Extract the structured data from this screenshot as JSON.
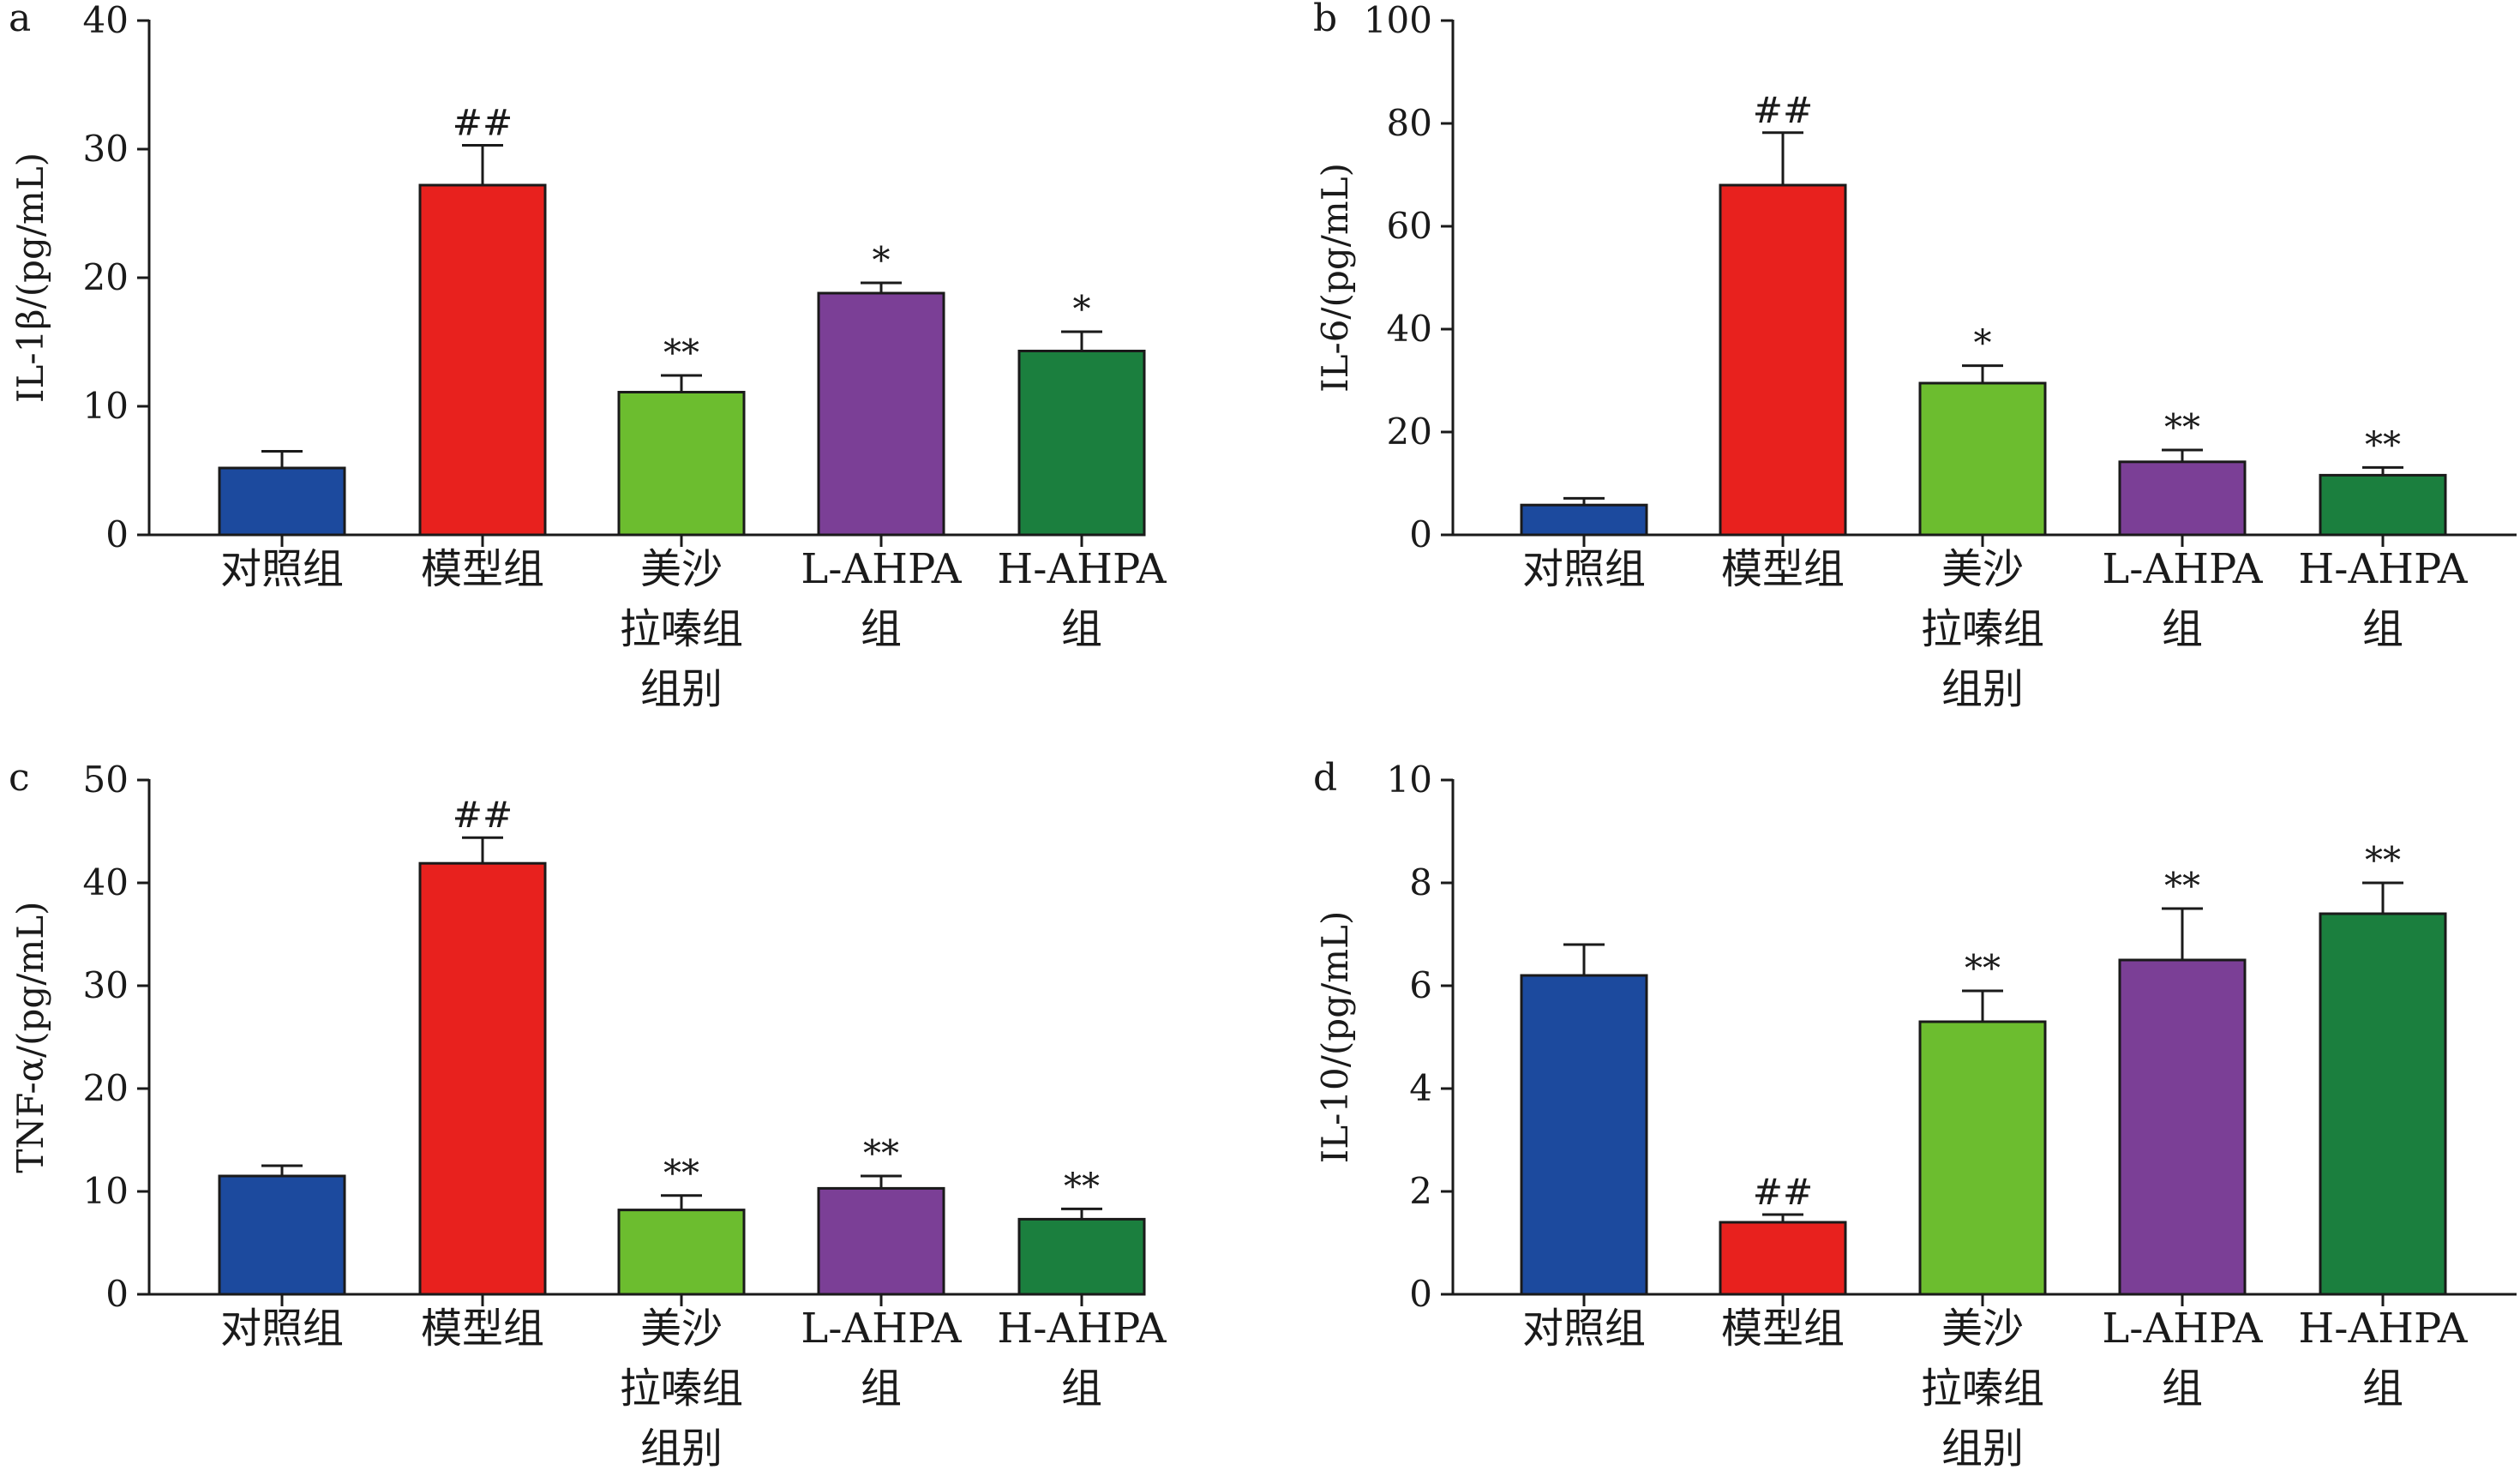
{
  "chart_data": [
    {
      "type": "bar",
      "panel": "a",
      "ylabel": "IL-1β/(pg/mL)",
      "ylim": [
        0,
        40
      ],
      "yticks": [
        0,
        10,
        20,
        30,
        40
      ],
      "categories": [
        [
          "对照组"
        ],
        [
          "模型组"
        ],
        [
          "美沙",
          "拉嗪组",
          "组别"
        ],
        [
          "L-AHPA",
          "组"
        ],
        [
          "H-AHPA",
          "组"
        ]
      ],
      "values": [
        5.2,
        27.2,
        11.1,
        18.8,
        14.3
      ],
      "errors": [
        1.3,
        3.1,
        1.3,
        0.8,
        1.5
      ],
      "annotations": [
        "",
        "##",
        "**",
        "*",
        "*"
      ]
    },
    {
      "type": "bar",
      "panel": "b",
      "ylabel": "IL-6/(pg/mL)",
      "ylim": [
        0,
        100
      ],
      "yticks": [
        0,
        20,
        40,
        60,
        80,
        100
      ],
      "categories": [
        [
          "对照组"
        ],
        [
          "模型组"
        ],
        [
          "美沙",
          "拉嗪组",
          "组别"
        ],
        [
          "L-AHPA",
          "组"
        ],
        [
          "H-AHPA",
          "组"
        ]
      ],
      "values": [
        5.8,
        68.0,
        29.5,
        14.2,
        11.6
      ],
      "errors": [
        1.3,
        10.2,
        3.4,
        2.3,
        1.5
      ],
      "annotations": [
        "",
        "##",
        "*",
        "**",
        "**"
      ]
    },
    {
      "type": "bar",
      "panel": "c",
      "ylabel": "TNF-α/(pg/mL)",
      "ylim": [
        0,
        50
      ],
      "yticks": [
        0,
        10,
        20,
        30,
        40,
        50
      ],
      "categories": [
        [
          "对照组"
        ],
        [
          "模型组"
        ],
        [
          "美沙",
          "拉嗪组",
          "组别"
        ],
        [
          "L-AHPA",
          "组"
        ],
        [
          "H-AHPA",
          "组"
        ]
      ],
      "values": [
        11.5,
        41.9,
        8.2,
        10.3,
        7.3
      ],
      "errors": [
        1.0,
        2.5,
        1.4,
        1.2,
        1.0
      ],
      "annotations": [
        "",
        "##",
        "**",
        "**",
        "**"
      ]
    },
    {
      "type": "bar",
      "panel": "d",
      "ylabel": "IL-10/(pg/mL)",
      "ylim": [
        0,
        10
      ],
      "yticks": [
        0,
        2,
        4,
        6,
        8,
        10
      ],
      "categories": [
        [
          "对照组"
        ],
        [
          "模型组"
        ],
        [
          "美沙",
          "拉嗪组",
          "组别"
        ],
        [
          "L-AHPA",
          "组"
        ],
        [
          "H-AHPA",
          "组"
        ]
      ],
      "values": [
        6.2,
        1.4,
        5.3,
        6.5,
        7.4
      ],
      "errors": [
        0.6,
        0.15,
        0.6,
        1.0,
        0.6
      ],
      "annotations": [
        "",
        "##",
        "**",
        "**",
        "**"
      ]
    }
  ],
  "colors": [
    "#1c4a9e",
    "#e8211e",
    "#6cbd2f",
    "#7b3f96",
    "#1b7f3e"
  ]
}
